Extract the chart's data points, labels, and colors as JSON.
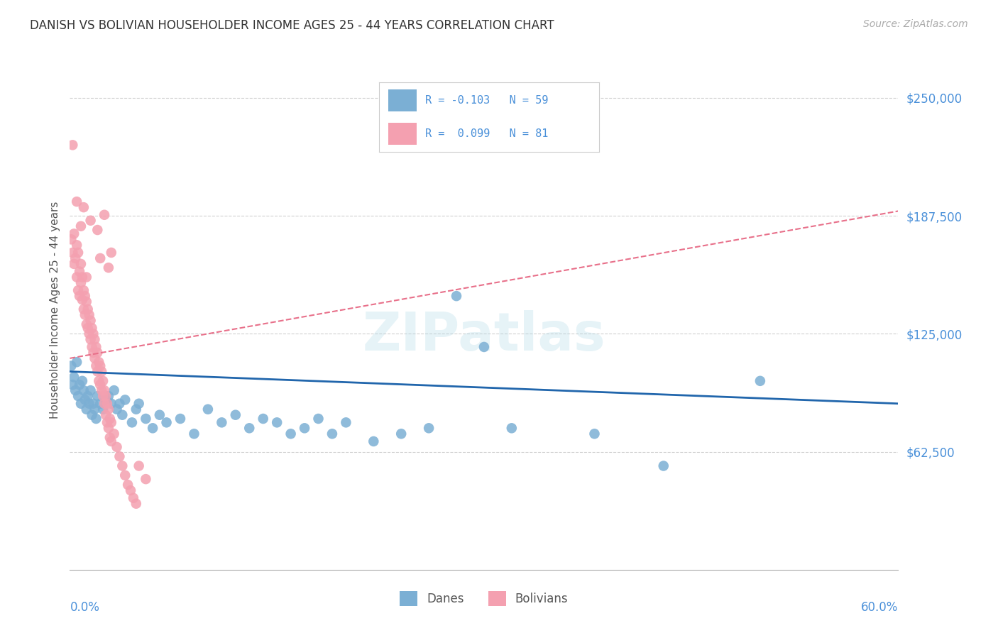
{
  "title": "DANISH VS BOLIVIAN HOUSEHOLDER INCOME AGES 25 - 44 YEARS CORRELATION CHART",
  "source": "Source: ZipAtlas.com",
  "ylabel": "Householder Income Ages 25 - 44 years",
  "ytick_labels": [
    "$62,500",
    "$125,000",
    "$187,500",
    "$250,000"
  ],
  "ytick_values": [
    62500,
    125000,
    187500,
    250000
  ],
  "ylim": [
    0,
    275000
  ],
  "xlim": [
    0.0,
    0.6
  ],
  "danes_color": "#7bafd4",
  "bolivians_color": "#f4a0b0",
  "danes_line_color": "#2166ac",
  "bolivians_line_color": "#e8708a",
  "axis_label_color": "#4a90d9",
  "grid_color": "#d0d0d0",
  "danes_scatter": [
    [
      0.001,
      108000
    ],
    [
      0.002,
      98000
    ],
    [
      0.003,
      102000
    ],
    [
      0.004,
      95000
    ],
    [
      0.005,
      110000
    ],
    [
      0.006,
      92000
    ],
    [
      0.007,
      98000
    ],
    [
      0.008,
      88000
    ],
    [
      0.009,
      100000
    ],
    [
      0.01,
      95000
    ],
    [
      0.011,
      90000
    ],
    [
      0.012,
      85000
    ],
    [
      0.013,
      92000
    ],
    [
      0.014,
      88000
    ],
    [
      0.015,
      95000
    ],
    [
      0.016,
      82000
    ],
    [
      0.017,
      88000
    ],
    [
      0.018,
      85000
    ],
    [
      0.019,
      80000
    ],
    [
      0.02,
      92000
    ],
    [
      0.022,
      88000
    ],
    [
      0.024,
      85000
    ],
    [
      0.026,
      90000
    ],
    [
      0.028,
      92000
    ],
    [
      0.03,
      88000
    ],
    [
      0.032,
      95000
    ],
    [
      0.034,
      85000
    ],
    [
      0.036,
      88000
    ],
    [
      0.038,
      82000
    ],
    [
      0.04,
      90000
    ],
    [
      0.045,
      78000
    ],
    [
      0.048,
      85000
    ],
    [
      0.05,
      88000
    ],
    [
      0.055,
      80000
    ],
    [
      0.06,
      75000
    ],
    [
      0.065,
      82000
    ],
    [
      0.07,
      78000
    ],
    [
      0.08,
      80000
    ],
    [
      0.09,
      72000
    ],
    [
      0.1,
      85000
    ],
    [
      0.11,
      78000
    ],
    [
      0.12,
      82000
    ],
    [
      0.13,
      75000
    ],
    [
      0.14,
      80000
    ],
    [
      0.15,
      78000
    ],
    [
      0.16,
      72000
    ],
    [
      0.17,
      75000
    ],
    [
      0.18,
      80000
    ],
    [
      0.19,
      72000
    ],
    [
      0.2,
      78000
    ],
    [
      0.22,
      68000
    ],
    [
      0.24,
      72000
    ],
    [
      0.26,
      75000
    ],
    [
      0.28,
      145000
    ],
    [
      0.3,
      118000
    ],
    [
      0.32,
      75000
    ],
    [
      0.38,
      72000
    ],
    [
      0.43,
      55000
    ],
    [
      0.5,
      100000
    ]
  ],
  "bolivians_scatter": [
    [
      0.001,
      175000
    ],
    [
      0.002,
      168000
    ],
    [
      0.003,
      178000
    ],
    [
      0.003,
      162000
    ],
    [
      0.004,
      165000
    ],
    [
      0.005,
      172000
    ],
    [
      0.005,
      155000
    ],
    [
      0.006,
      168000
    ],
    [
      0.006,
      148000
    ],
    [
      0.007,
      158000
    ],
    [
      0.007,
      145000
    ],
    [
      0.008,
      162000
    ],
    [
      0.008,
      152000
    ],
    [
      0.009,
      155000
    ],
    [
      0.009,
      143000
    ],
    [
      0.01,
      148000
    ],
    [
      0.01,
      138000
    ],
    [
      0.011,
      145000
    ],
    [
      0.011,
      135000
    ],
    [
      0.012,
      142000
    ],
    [
      0.012,
      130000
    ],
    [
      0.013,
      138000
    ],
    [
      0.013,
      128000
    ],
    [
      0.014,
      135000
    ],
    [
      0.014,
      125000
    ],
    [
      0.015,
      132000
    ],
    [
      0.015,
      122000
    ],
    [
      0.016,
      128000
    ],
    [
      0.016,
      118000
    ],
    [
      0.017,
      125000
    ],
    [
      0.017,
      115000
    ],
    [
      0.018,
      122000
    ],
    [
      0.018,
      112000
    ],
    [
      0.019,
      118000
    ],
    [
      0.019,
      108000
    ],
    [
      0.02,
      115000
    ],
    [
      0.02,
      105000
    ],
    [
      0.021,
      110000
    ],
    [
      0.021,
      100000
    ],
    [
      0.022,
      108000
    ],
    [
      0.022,
      98000
    ],
    [
      0.023,
      105000
    ],
    [
      0.023,
      95000
    ],
    [
      0.024,
      100000
    ],
    [
      0.024,
      92000
    ],
    [
      0.025,
      95000
    ],
    [
      0.025,
      88000
    ],
    [
      0.026,
      92000
    ],
    [
      0.026,
      82000
    ],
    [
      0.027,
      88000
    ],
    [
      0.027,
      78000
    ],
    [
      0.028,
      85000
    ],
    [
      0.028,
      75000
    ],
    [
      0.029,
      80000
    ],
    [
      0.029,
      70000
    ],
    [
      0.03,
      78000
    ],
    [
      0.03,
      68000
    ],
    [
      0.032,
      72000
    ],
    [
      0.034,
      65000
    ],
    [
      0.036,
      60000
    ],
    [
      0.038,
      55000
    ],
    [
      0.04,
      50000
    ],
    [
      0.042,
      45000
    ],
    [
      0.044,
      42000
    ],
    [
      0.046,
      38000
    ],
    [
      0.048,
      35000
    ],
    [
      0.05,
      55000
    ],
    [
      0.055,
      48000
    ],
    [
      0.002,
      225000
    ],
    [
      0.01,
      192000
    ],
    [
      0.015,
      185000
    ],
    [
      0.02,
      180000
    ],
    [
      0.025,
      188000
    ],
    [
      0.022,
      165000
    ],
    [
      0.028,
      160000
    ],
    [
      0.03,
      168000
    ],
    [
      0.005,
      195000
    ],
    [
      0.008,
      182000
    ],
    [
      0.012,
      155000
    ]
  ],
  "danes_trend_x": [
    0.0,
    0.6
  ],
  "danes_trend_y": [
    105000,
    88000
  ],
  "bolivians_trend_x": [
    0.0,
    0.6
  ],
  "bolivians_trend_y": [
    112000,
    190000
  ]
}
